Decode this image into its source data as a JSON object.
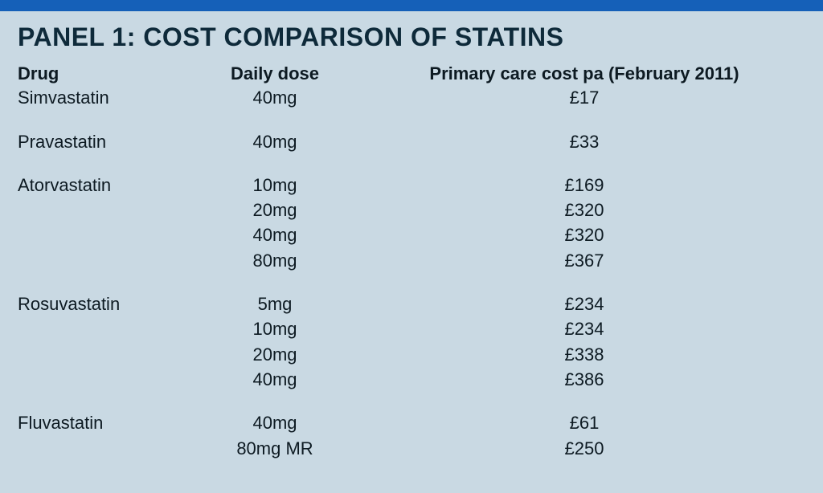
{
  "title": "PANEL 1: COST COMPARISON OF STATINS",
  "headers": {
    "drug": "Drug",
    "dose": "Daily dose",
    "cost": "Primary care cost pa (February 2011)"
  },
  "rows": [
    {
      "drug": "Simvastatin",
      "dose": "40mg",
      "cost": "£17",
      "gap": false
    },
    {
      "drug": "Pravastatin",
      "dose": "40mg",
      "cost": "£33",
      "gap": true
    },
    {
      "drug": "Atorvastatin",
      "dose": "10mg",
      "cost": "£169",
      "gap": true
    },
    {
      "drug": "",
      "dose": "20mg",
      "cost": "£320",
      "gap": false
    },
    {
      "drug": "",
      "dose": "40mg",
      "cost": "£320",
      "gap": false
    },
    {
      "drug": "",
      "dose": "80mg",
      "cost": "£367",
      "gap": false
    },
    {
      "drug": "Rosuvastatin",
      "dose": "5mg",
      "cost": "£234",
      "gap": true
    },
    {
      "drug": "",
      "dose": "10mg",
      "cost": "£234",
      "gap": false
    },
    {
      "drug": "",
      "dose": "20mg",
      "cost": "£338",
      "gap": false
    },
    {
      "drug": "",
      "dose": "40mg",
      "cost": "£386",
      "gap": false
    },
    {
      "drug": "Fluvastatin",
      "dose": "40mg",
      "cost": "£61",
      "gap": true
    },
    {
      "drug": "",
      "dose": "80mg MR",
      "cost": "£250",
      "gap": false
    }
  ],
  "colors": {
    "topbar": "#1560b8",
    "background": "#c9d9e3",
    "title": "#0e2a3a",
    "text": "#0d1a22"
  }
}
